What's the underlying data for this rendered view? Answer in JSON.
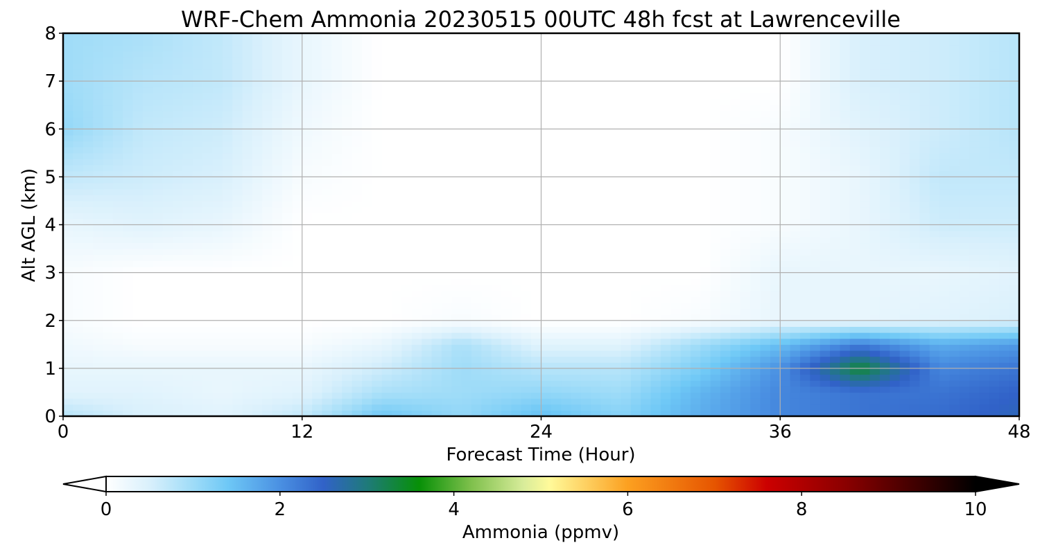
{
  "chart_data": {
    "type": "heatmap",
    "title": "WRF-Chem Ammonia  20230515 00UTC 48h fcst at Lawrenceville",
    "xlabel": "Forecast Time (Hour)",
    "ylabel": "Alt AGL (km)",
    "xlim": [
      0,
      48
    ],
    "ylim": [
      0,
      8
    ],
    "xticks": [
      "0",
      "12",
      "24",
      "36",
      "48"
    ],
    "yticks": [
      "0",
      "1",
      "2",
      "3",
      "4",
      "5",
      "6",
      "7",
      "8"
    ],
    "grid": true,
    "x": [
      0,
      4,
      8,
      12,
      16,
      20,
      24,
      28,
      32,
      36,
      40,
      44,
      48
    ],
    "y": [
      0,
      0.5,
      1,
      1.5,
      2,
      3,
      4,
      5,
      6,
      7,
      8
    ],
    "z": [
      [
        0.8,
        0.5,
        0.4,
        0.7,
        1.4,
        1.1,
        1.5,
        1.2,
        1.7,
        2.1,
        2.3,
        2.4,
        2.6
      ],
      [
        0.4,
        0.4,
        0.3,
        0.4,
        0.9,
        1.0,
        1.1,
        1.0,
        1.6,
        2.1,
        2.3,
        2.3,
        2.5
      ],
      [
        0.3,
        0.3,
        0.3,
        0.3,
        0.6,
        1.0,
        0.8,
        0.8,
        1.3,
        2.0,
        3.4,
        2.1,
        2.3
      ],
      [
        0.2,
        0.1,
        0.1,
        0.1,
        0.3,
        0.9,
        0.4,
        0.4,
        1.0,
        1.5,
        2.2,
        1.7,
        1.9
      ],
      [
        0.1,
        0.0,
        0.0,
        0.0,
        0.0,
        0.1,
        0.0,
        0.0,
        0.1,
        0.3,
        0.3,
        0.4,
        0.5
      ],
      [
        0.1,
        0.0,
        0.0,
        0.0,
        0.0,
        0.0,
        0.0,
        0.0,
        0.0,
        0.3,
        0.3,
        0.3,
        0.4
      ],
      [
        0.3,
        0.4,
        0.3,
        0.0,
        0.0,
        0.0,
        0.0,
        0.0,
        0.0,
        0.1,
        0.3,
        0.6,
        0.6
      ],
      [
        0.7,
        0.6,
        0.5,
        0.1,
        0.0,
        0.0,
        0.0,
        0.0,
        0.0,
        0.1,
        0.3,
        0.7,
        0.7
      ],
      [
        1.1,
        0.7,
        0.6,
        0.2,
        0.0,
        0.0,
        0.0,
        0.0,
        0.0,
        0.1,
        0.4,
        0.6,
        0.8
      ],
      [
        1.0,
        0.8,
        0.7,
        0.3,
        0.0,
        0.0,
        0.0,
        0.0,
        0.0,
        0.0,
        0.5,
        0.6,
        0.8
      ],
      [
        1.0,
        0.9,
        0.7,
        0.3,
        0.0,
        0.0,
        0.0,
        0.0,
        0.0,
        0.0,
        0.5,
        0.6,
        0.8
      ]
    ],
    "colorbar": {
      "label": "Ammonia  (ppmv)",
      "min": 0,
      "max": 10,
      "ticks": [
        "0",
        "2",
        "4",
        "6",
        "8",
        "10"
      ],
      "extend": "both",
      "color_stops": [
        {
          "v": 0,
          "c": "#ffffff"
        },
        {
          "v": 0.5,
          "c": "#d9f0fc"
        },
        {
          "v": 1.0,
          "c": "#9fdcf8"
        },
        {
          "v": 1.4,
          "c": "#6ec8f6"
        },
        {
          "v": 2.0,
          "c": "#4a90e2"
        },
        {
          "v": 2.5,
          "c": "#3162c8"
        },
        {
          "v": 3.0,
          "c": "#1f7a7a"
        },
        {
          "v": 3.6,
          "c": "#079007"
        },
        {
          "v": 4.2,
          "c": "#7fc04c"
        },
        {
          "v": 4.8,
          "c": "#d8ec9a"
        },
        {
          "v": 5.1,
          "c": "#fffa9a"
        },
        {
          "v": 6.0,
          "c": "#fca020"
        },
        {
          "v": 7.0,
          "c": "#e65500"
        },
        {
          "v": 7.6,
          "c": "#cc0000"
        },
        {
          "v": 8.5,
          "c": "#8b0000"
        },
        {
          "v": 10,
          "c": "#000000"
        }
      ]
    }
  }
}
